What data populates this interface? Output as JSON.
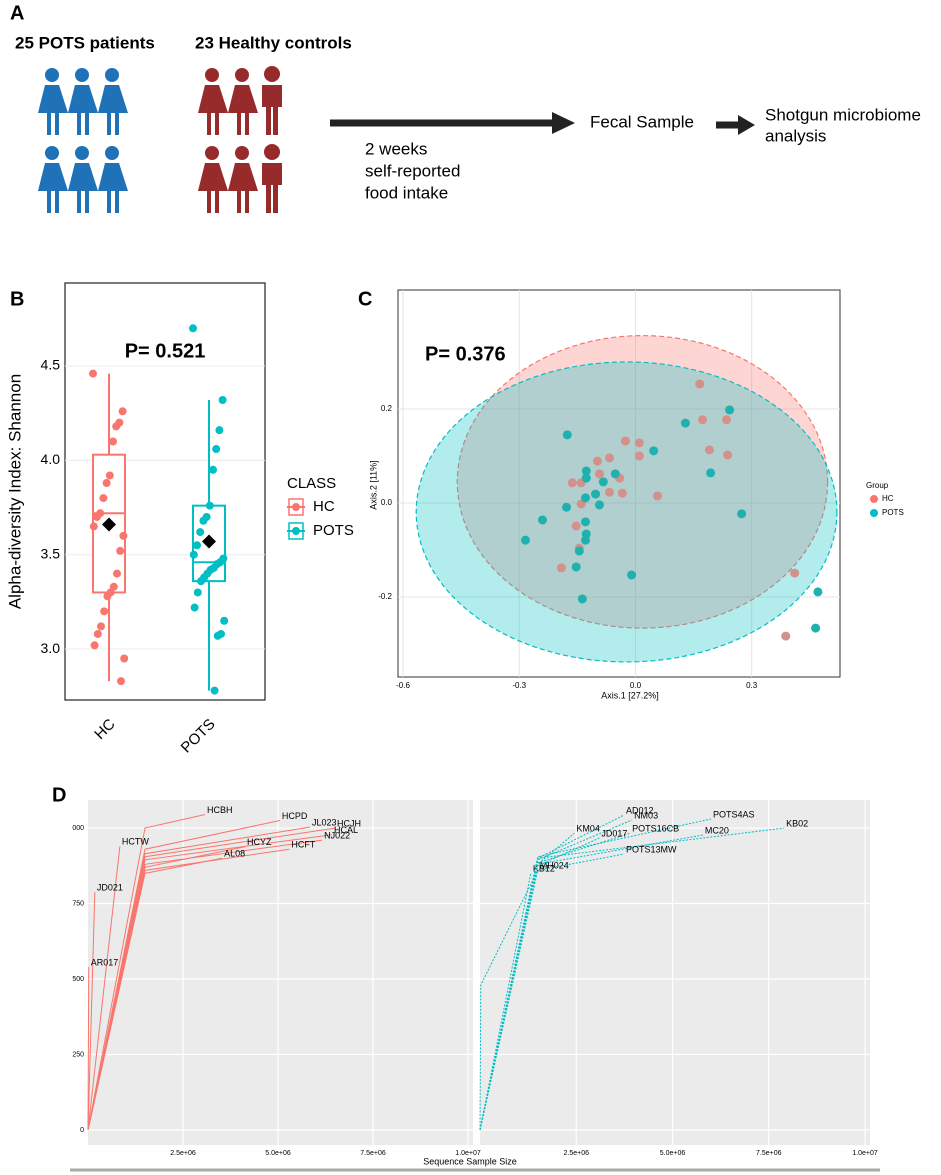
{
  "panel_a": {
    "label": "A",
    "pots": "25 POTS patients",
    "hc": "23 Healthy controls",
    "step1": [
      "2 weeks",
      "self-reported",
      "food intake"
    ],
    "step2": "Fecal Sample",
    "step3": [
      "Shotgun microbiome",
      "analysis"
    ]
  },
  "chart_data": [
    {
      "type": "box",
      "panel": "B",
      "ylabel": "Alpha-diversity Index: Shannon",
      "annotation": "P= 0.521",
      "legend_title": "CLASS",
      "categories": [
        "HC",
        "POTS"
      ],
      "ylim": [
        2.73,
        4.94
      ],
      "yticks": [
        {
          "value": 3,
          "label": "3.0"
        },
        3.5,
        {
          "value": 4,
          "label": "4.0"
        },
        4.5
      ],
      "series": [
        {
          "name": "HC",
          "color": "#f8766d",
          "values": [
            4.46,
            4.26,
            4.2,
            4.18,
            4.1,
            3.92,
            3.88,
            3.8,
            3.72,
            3.7,
            3.65,
            3.6,
            3.52,
            3.4,
            3.33,
            3.3,
            3.28,
            3.2,
            3.12,
            3.08,
            3.02,
            2.95,
            2.83
          ],
          "box": {
            "whisker_low": 2.83,
            "q1": 3.3,
            "median": 3.72,
            "q3": 4.03,
            "whisker_high": 4.46,
            "mean": 3.66
          }
        },
        {
          "name": "POTS",
          "color": "#00bfc4",
          "values": [
            4.7,
            4.32,
            4.16,
            4.06,
            3.95,
            3.76,
            3.7,
            3.68,
            3.62,
            3.55,
            3.5,
            3.48,
            3.46,
            3.45,
            3.43,
            3.42,
            3.4,
            3.38,
            3.36,
            3.3,
            3.22,
            3.15,
            3.08,
            3.07,
            2.78
          ],
          "box": {
            "whisker_low": 2.78,
            "q1": 3.36,
            "median": 3.46,
            "q3": 3.76,
            "whisker_high": 4.32,
            "mean": 3.57
          }
        }
      ]
    },
    {
      "type": "scatter",
      "panel": "C",
      "xlabel": "Axis.1   [27.2%]",
      "ylabel": "Axis.2   [11%]",
      "annotation": "P= 0.376",
      "legend_title": "Group",
      "xlim": [
        -0.613,
        0.528
      ],
      "ylim": [
        -0.37,
        0.453
      ],
      "xticks": [
        -0.6,
        -0.3,
        {
          "value": 0,
          "label": "0.0"
        },
        0.3
      ],
      "yticks": [
        -0.2,
        {
          "value": 0,
          "label": "0.0"
        },
        0.2
      ],
      "series": [
        {
          "name": "HC",
          "color": "#f8766d",
          "point_color": "#d4908a",
          "ellipse": {
            "cx": 0.018,
            "cy": 0.045,
            "rx": 0.478,
            "ry": 0.311
          },
          "x": [
            0.166,
            0.173,
            0.235,
            0.191,
            0.238,
            -0.026,
            0.01,
            -0.067,
            0.01,
            -0.098,
            -0.041,
            -0.034,
            0.057,
            -0.067,
            -0.14,
            -0.163,
            -0.14,
            -0.153,
            -0.191,
            -0.145,
            0.411,
            0.388,
            -0.093
          ],
          "values": [
            0.253,
            0.177,
            0.177,
            0.113,
            0.102,
            0.132,
            0.128,
            0.096,
            0.1,
            0.089,
            0.053,
            0.021,
            0.015,
            0.023,
            0.043,
            0.043,
            -0.002,
            -0.049,
            -0.138,
            -0.096,
            -0.149,
            -0.283,
            0.062
          ]
        },
        {
          "name": "POTS",
          "color": "#00bfc4",
          "point_color": "#1fb0b0",
          "ellipse": {
            "cx": -0.023,
            "cy": -0.019,
            "rx": 0.543,
            "ry": 0.319
          },
          "x": [
            -0.176,
            -0.127,
            -0.052,
            0.047,
            0.129,
            0.243,
            0.194,
            0.274,
            -0.103,
            -0.083,
            -0.178,
            -0.24,
            -0.284,
            -0.129,
            -0.127,
            -0.129,
            -0.145,
            -0.153,
            -0.137,
            -0.01,
            -0.127,
            0.471,
            0.465,
            -0.129,
            -0.093
          ],
          "values": [
            0.145,
            0.068,
            0.062,
            0.111,
            0.17,
            0.198,
            0.064,
            -0.023,
            0.019,
            0.045,
            -0.009,
            -0.036,
            -0.079,
            -0.04,
            -0.066,
            -0.079,
            -0.102,
            -0.136,
            -0.204,
            -0.153,
            0.053,
            -0.189,
            -0.266,
            0.011,
            -0.004
          ]
        }
      ]
    },
    {
      "type": "line",
      "panel": "D",
      "xlabel": "Sequence Sample Size",
      "xlim": [
        0,
        10130000
      ],
      "ylim": [
        -50,
        1093
      ],
      "xticks": [
        {
          "value": 2500000,
          "label": "2.5e+06"
        },
        {
          "value": 5000000,
          "label": "5.0e+06"
        },
        {
          "value": 7500000,
          "label": "7.5e+06"
        },
        {
          "value": 10000000,
          "label": "1.0e+07"
        }
      ],
      "yticks": [
        0,
        250,
        500,
        750,
        {
          "value": 1000,
          "label": "000"
        }
      ],
      "facets": [
        {
          "color": "#f8766d",
          "dashed": false,
          "series": [
            {
              "name": "HCBH",
              "x": [
                0,
                1500000,
                3080000
              ],
              "values": [
                0,
                1000,
                1045
              ]
            },
            {
              "name": "HCTW",
              "x": [
                0,
                840000
              ],
              "values": [
                0,
                940
              ]
            },
            {
              "name": "JD021",
              "x": [
                0,
                180000
              ],
              "values": [
                0,
                788
              ]
            },
            {
              "name": "AR017",
              "x": [
                0,
                20000
              ],
              "values": [
                0,
                540
              ]
            },
            {
              "name": "HCPD",
              "x": [
                0,
                1500000,
                5050000
              ],
              "values": [
                0,
                930,
                1025
              ]
            },
            {
              "name": "JL023",
              "x": [
                0,
                1500000,
                5840000
              ],
              "values": [
                0,
                915,
                1003
              ]
            },
            {
              "name": "HCJH",
              "x": [
                0,
                1500000,
                6500000
              ],
              "values": [
                0,
                905,
                1000
              ]
            },
            {
              "name": "HCAL",
              "x": [
                0,
                1500000,
                6420000
              ],
              "values": [
                0,
                895,
                978
              ]
            },
            {
              "name": "NJ022",
              "x": [
                0,
                1500000,
                6160000
              ],
              "values": [
                0,
                880,
                960
              ]
            },
            {
              "name": "HCYZ",
              "x": [
                0,
                1500000,
                4130000
              ],
              "values": [
                0,
                870,
                938
              ]
            },
            {
              "name": "HCFT",
              "x": [
                0,
                1500000,
                5300000
              ],
              "values": [
                0,
                860,
                930
              ]
            },
            {
              "name": "AL08",
              "x": [
                0,
                1500000,
                3530000
              ],
              "values": [
                0,
                850,
                900
              ]
            }
          ]
        },
        {
          "color": "#00bfc4",
          "dashed": true,
          "series": [
            {
              "name": "MH024",
              "x": [
                0,
                20000,
                1500000
              ],
              "values": [
                0,
                480,
                860
              ]
            },
            {
              "name": "KB12",
              "x": [
                0,
                1320000
              ],
              "values": [
                0,
                850
              ]
            },
            {
              "name": "KB02",
              "x": [
                0,
                1500000,
                7900000
              ],
              "values": [
                0,
                900,
                1000
              ]
            },
            {
              "name": "POTS4AS",
              "x": [
                0,
                1500000,
                6000000
              ],
              "values": [
                0,
                905,
                1030
              ]
            },
            {
              "name": "AD012",
              "x": [
                0,
                1500000,
                3740000
              ],
              "values": [
                0,
                900,
                1043
              ]
            },
            {
              "name": "NM03",
              "x": [
                0,
                1500000,
                3950000
              ],
              "values": [
                0,
                895,
                1027
              ]
            },
            {
              "name": "POTS16CB",
              "x": [
                0,
                1500000,
                3900000
              ],
              "values": [
                0,
                885,
                983
              ]
            },
            {
              "name": "MC20",
              "x": [
                0,
                1500000,
                5790000
              ],
              "values": [
                0,
                880,
                977
              ]
            },
            {
              "name": "KM04",
              "x": [
                0,
                1500000,
                2450000
              ],
              "values": [
                0,
                880,
                983
              ]
            },
            {
              "name": "JD017",
              "x": [
                0,
                1500000,
                3100000
              ],
              "values": [
                0,
                875,
                967
              ]
            },
            {
              "name": "POTS13MW",
              "x": [
                0,
                1500000,
                3740000
              ],
              "values": [
                0,
                860,
                914
              ]
            }
          ]
        }
      ]
    }
  ]
}
